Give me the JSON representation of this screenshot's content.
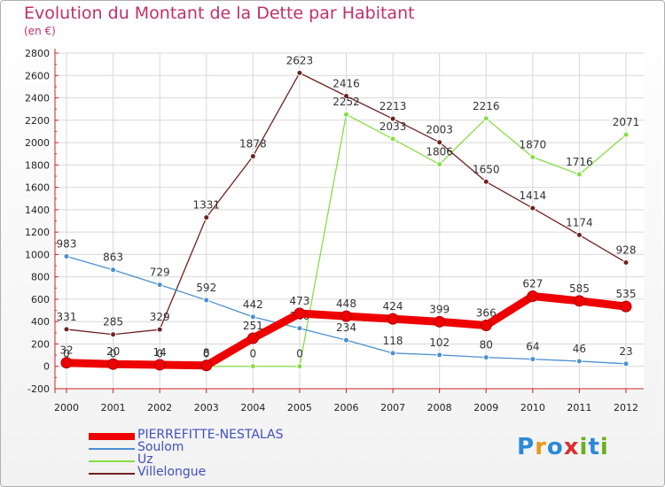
{
  "header": {
    "title": "Evolution du Montant de la Dette par Habitant",
    "subtitle": "(en €)"
  },
  "logo": {
    "text": "Proxiti"
  },
  "chart_data": {
    "type": "line",
    "title": "Evolution du Montant de la Dette par Habitant",
    "subtitle": "(en €)",
    "categories": [
      "2000",
      "2001",
      "2002",
      "2003",
      "2004",
      "2005",
      "2006",
      "2007",
      "2008",
      "2009",
      "2010",
      "2011",
      "2012"
    ],
    "ylim": [
      -200,
      2800
    ],
    "yticks": [
      -200,
      0,
      200,
      400,
      600,
      800,
      1000,
      1200,
      1400,
      1600,
      1800,
      2000,
      2200,
      2400,
      2600,
      2800
    ],
    "grid": true,
    "legend_position": "bottom-left",
    "series": [
      {
        "name": "PIERREFITTE-NESTALAS",
        "color": "#ee0000",
        "values": [
          32,
          20,
          14,
          8,
          251,
          473,
          448,
          424,
          399,
          366,
          627,
          585,
          535
        ]
      },
      {
        "name": "Soulom",
        "color": "#4a90d0",
        "values": [
          983,
          863,
          729,
          592,
          442,
          340,
          234,
          118,
          102,
          80,
          64,
          46,
          23
        ]
      },
      {
        "name": "Uz",
        "color": "#88dd44",
        "values": [
          0,
          0,
          0,
          0,
          0,
          0,
          2252,
          2033,
          1806,
          2216,
          1870,
          1716,
          2071
        ]
      },
      {
        "name": "Villelongue",
        "color": "#702020",
        "values": [
          331,
          285,
          329,
          1331,
          1878,
          2623,
          2416,
          2213,
          2003,
          1650,
          1414,
          1174,
          928
        ]
      }
    ]
  }
}
